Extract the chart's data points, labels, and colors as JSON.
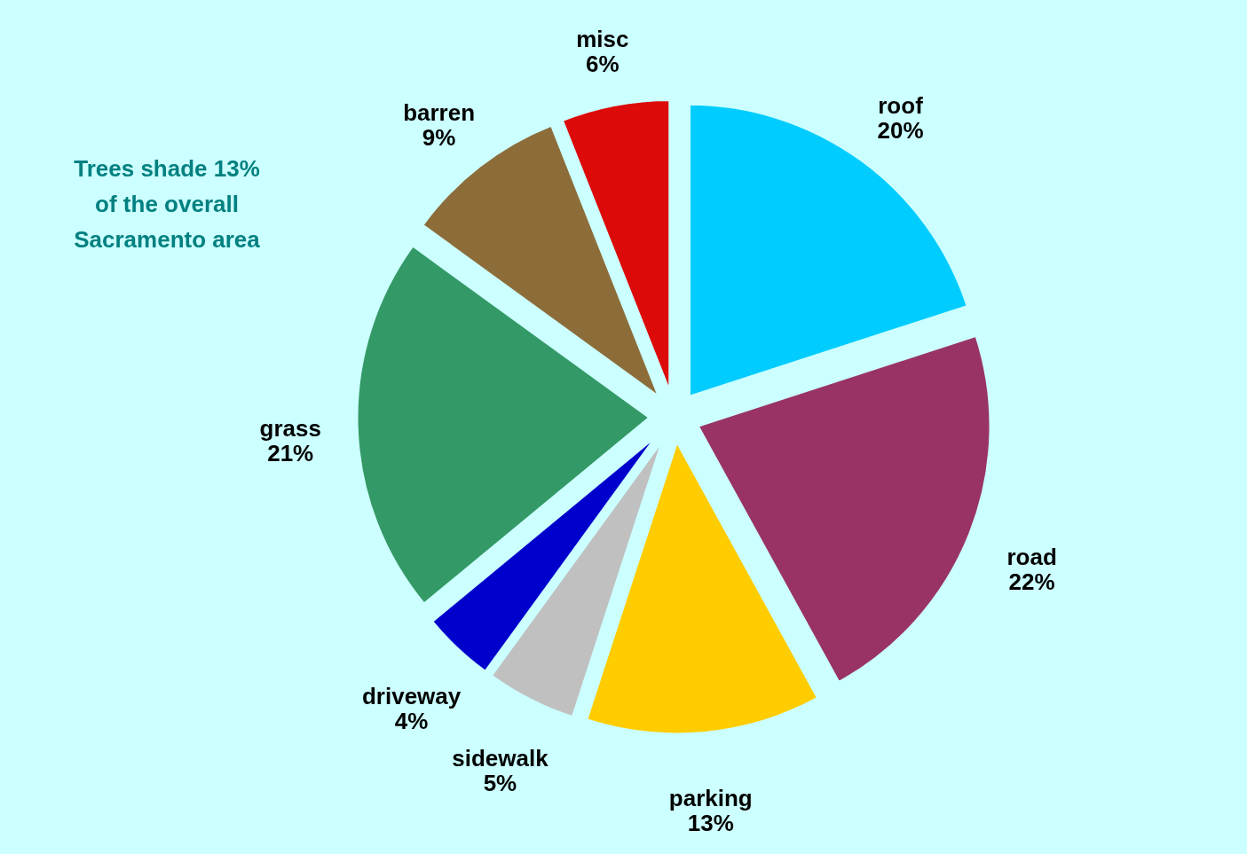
{
  "chart_data": {
    "type": "pie",
    "categories": [
      "roof",
      "road",
      "parking",
      "sidewalk",
      "driveway",
      "grass",
      "barren",
      "misc"
    ],
    "values": [
      20,
      22,
      13,
      5,
      4,
      21,
      9,
      6
    ],
    "value_labels": [
      "20%",
      "22%",
      "13%",
      "5%",
      "4%",
      "21%",
      "9%",
      "6%"
    ],
    "colors": [
      "#00ccff",
      "#993366",
      "#ffcc00",
      "#c0c0c0",
      "#0000cc",
      "#339966",
      "#8c6d3a",
      "#dd0a0a"
    ],
    "annotations": [
      "Trees shade 13% of the overall Sacramento area"
    ]
  }
}
